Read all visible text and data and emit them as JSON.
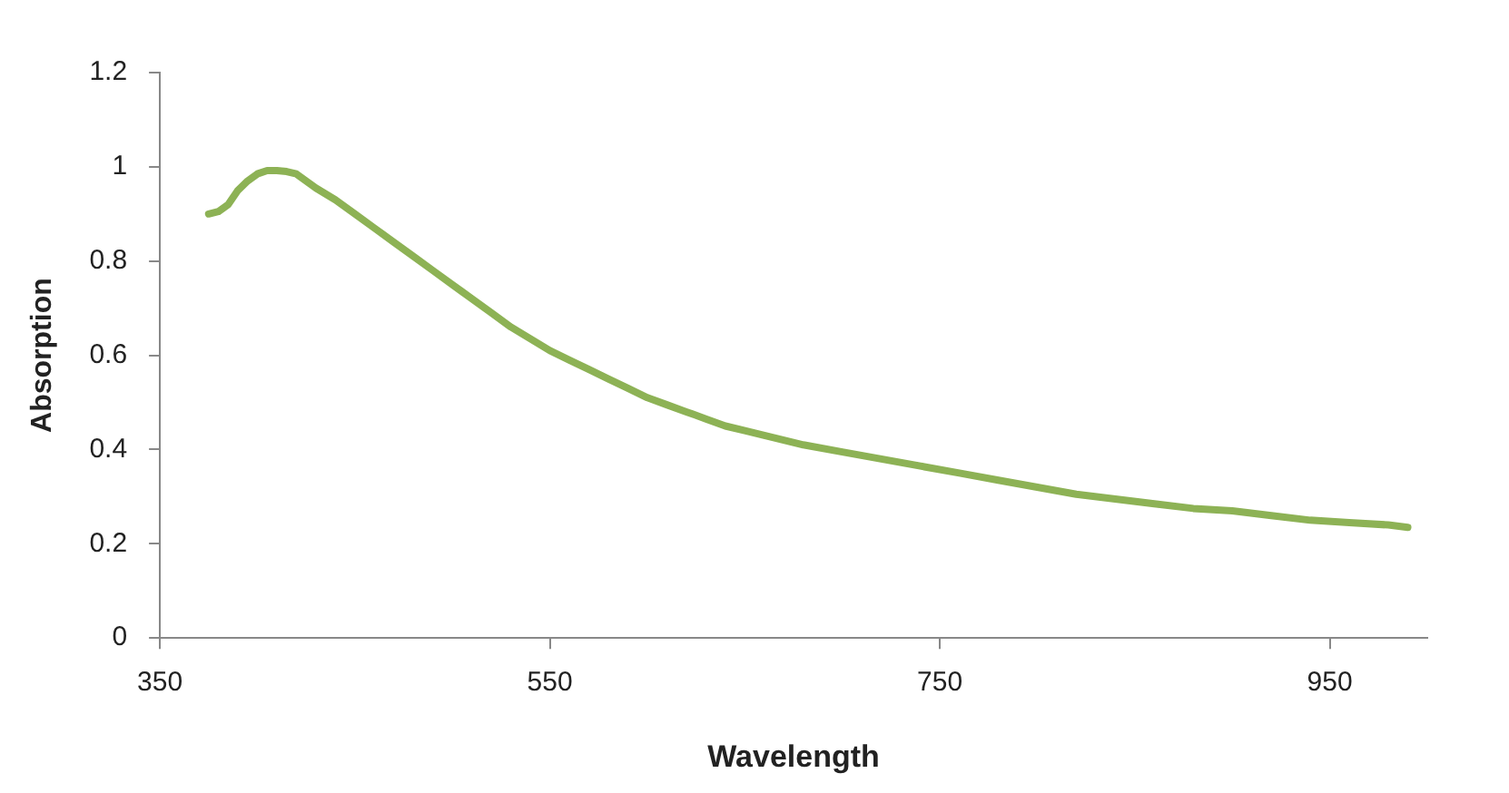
{
  "chart_data": {
    "type": "line",
    "xlabel": "Wavelength",
    "ylabel": "Absorption",
    "x": [
      375,
      380,
      385,
      390,
      395,
      400,
      405,
      410,
      415,
      420,
      425,
      430,
      440,
      450,
      460,
      470,
      480,
      490,
      500,
      510,
      520,
      530,
      540,
      550,
      560,
      570,
      580,
      590,
      600,
      610,
      620,
      630,
      640,
      650,
      660,
      680,
      700,
      720,
      740,
      760,
      780,
      800,
      820,
      840,
      860,
      880,
      900,
      920,
      940,
      960,
      980,
      990
    ],
    "series": [
      {
        "color": "#8db255",
        "values": [
          0.9,
          0.905,
          0.92,
          0.95,
          0.97,
          0.985,
          0.992,
          0.992,
          0.99,
          0.985,
          0.97,
          0.955,
          0.93,
          0.9,
          0.87,
          0.84,
          0.81,
          0.78,
          0.75,
          0.72,
          0.69,
          0.66,
          0.635,
          0.61,
          0.59,
          0.57,
          0.55,
          0.53,
          0.51,
          0.495,
          0.48,
          0.465,
          0.45,
          0.44,
          0.43,
          0.41,
          0.395,
          0.38,
          0.365,
          0.35,
          0.335,
          0.32,
          0.305,
          0.295,
          0.285,
          0.275,
          0.27,
          0.26,
          0.25,
          0.245,
          0.24,
          0.235
        ]
      }
    ],
    "xlim": [
      350,
      1000
    ],
    "xticks": [
      350,
      550,
      750,
      950
    ],
    "ylim": [
      0,
      1.2
    ],
    "yticks": [
      0,
      0.2,
      0.4,
      0.6,
      0.8,
      1,
      1.2
    ],
    "grid": false,
    "legend": false,
    "marker": "none",
    "line_style": "solid"
  }
}
